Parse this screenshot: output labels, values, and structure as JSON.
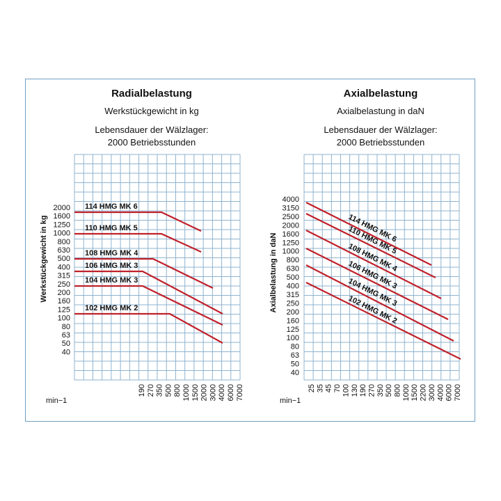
{
  "colors": {
    "frame": "#6f9fc4",
    "grid": "#8fb3cf",
    "series": "#c0212b",
    "text": "#111111"
  },
  "chart_data": [
    {
      "type": "line",
      "title": "Radialbelastung",
      "subtitle": "Werkstückgewicht in kg",
      "note_line1": "Lebensdauer der Wälzlager:",
      "note_line2": "2000 Betriebsstunden",
      "ylabel": "Werkstückgewicht in kg",
      "xlabel": "min−1",
      "y_ticks": [
        "2000",
        "1600",
        "1250",
        "1000",
        "800",
        "630",
        "500",
        "400",
        "315",
        "250",
        "200",
        "160",
        "125",
        "100",
        "80",
        "63",
        "50",
        "40"
      ],
      "x_ticks": [
        "190",
        "270",
        "350",
        "500",
        "800",
        "1000",
        "1500",
        "2000",
        "3000",
        "4000",
        "6000",
        "7000"
      ],
      "x_tick_start_col": 6,
      "grid": true,
      "series": [
        {
          "name": "114 HMG MK 6",
          "points": [
            {
              "x": "",
              "y": "2000"
            },
            {
              "x": "500",
              "y": "2000"
            },
            {
              "x": "2000",
              "y": "1000"
            }
          ]
        },
        {
          "name": "110 HMG MK 5",
          "points": [
            {
              "x": "",
              "y": "1000"
            },
            {
              "x": "500",
              "y": "1000"
            },
            {
              "x": "2000",
              "y": "500"
            }
          ]
        },
        {
          "name": "108 HMG MK 4",
          "points": [
            {
              "x": "",
              "y": "500"
            },
            {
              "x": "350",
              "y": "500"
            },
            {
              "x": "4000",
              "y": "250"
            }
          ]
        },
        {
          "name": "106 HMG MK 3",
          "points": [
            {
              "x": "",
              "y": "400"
            },
            {
              "x": "270",
              "y": "400"
            },
            {
              "x": "6000",
              "y": "125"
            }
          ]
        },
        {
          "name": "104 HMG MK 3",
          "points": [
            {
              "x": "",
              "y": "250"
            },
            {
              "x": "270",
              "y": "250"
            },
            {
              "x": "6000",
              "y": "80"
            }
          ]
        },
        {
          "name": "102 HMG MK 2",
          "points": [
            {
              "x": "",
              "y": "125"
            },
            {
              "x": "800",
              "y": "125"
            },
            {
              "x": "6000",
              "y": "50"
            }
          ]
        }
      ]
    },
    {
      "type": "line",
      "title": "Axialbelastung",
      "subtitle": "Axialbelastung in daN",
      "note_line1": "Lebensdauer der Wälzlager:",
      "note_line2": "2000 Betriebsstunden",
      "ylabel": "Axialbelastung in daN",
      "xlabel": "min−1",
      "y_ticks": [
        "4000",
        "3150",
        "2500",
        "2000",
        "1600",
        "1250",
        "1000",
        "800",
        "630",
        "500",
        "400",
        "315",
        "250",
        "200",
        "160",
        "125",
        "100",
        "80",
        "63",
        "50",
        "40"
      ],
      "x_ticks": [
        "25",
        "35",
        "45",
        "70",
        "100",
        "130",
        "190",
        "270",
        "350",
        "500",
        "800",
        "1000",
        "1500",
        "2200",
        "3000",
        "4000",
        "6000",
        "7000"
      ],
      "x_tick_start_col": 0,
      "grid": true,
      "series": [
        {
          "name": "114 HMG MK 6",
          "points": [
            {
              "x": "",
              "y": "4000"
            },
            {
              "x": "2200",
              "y": "630"
            }
          ]
        },
        {
          "name": "110 HMG MK 5",
          "points": [
            {
              "x": "",
              "y": "2500"
            },
            {
              "x": "3000",
              "y": "400"
            }
          ]
        },
        {
          "name": "108 HMG MK 4",
          "points": [
            {
              "x": "",
              "y": "1600"
            },
            {
              "x": "4000",
              "y": "250"
            }
          ]
        },
        {
          "name": "106 HMG MK 3",
          "points": [
            {
              "x": "",
              "y": "1000"
            },
            {
              "x": "6000",
              "y": "160"
            }
          ]
        },
        {
          "name": "104 HMG MK 3",
          "points": [
            {
              "x": "",
              "y": "630"
            },
            {
              "x": "6000",
              "y": "100"
            }
          ]
        },
        {
          "name": "102 HMG MK 2",
          "points": [
            {
              "x": "",
              "y": "400"
            },
            {
              "x": "7000",
              "y": "63"
            }
          ]
        }
      ]
    }
  ]
}
